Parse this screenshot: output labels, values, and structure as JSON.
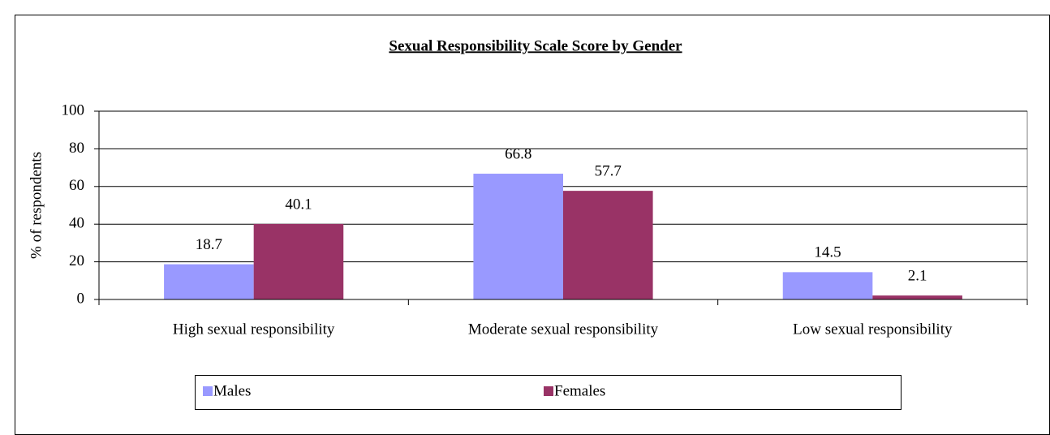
{
  "chart_data": {
    "type": "bar",
    "title": "Sexual Responsibility Scale Score by Gender",
    "y_label": "% of respondents",
    "categories": [
      "High sexual responsibility",
      "Moderate sexual responsibility",
      "Low sexual responsibility"
    ],
    "series": [
      {
        "name": "Males",
        "color": "#9999ff",
        "values": [
          18.7,
          66.8,
          14.5
        ]
      },
      {
        "name": "Females",
        "color": "#993366",
        "values": [
          40.1,
          57.7,
          2.1
        ]
      }
    ],
    "ylim": [
      0,
      100
    ],
    "yticks": [
      0,
      20,
      40,
      60,
      80,
      100
    ],
    "grid": true,
    "legend": "bottom"
  }
}
